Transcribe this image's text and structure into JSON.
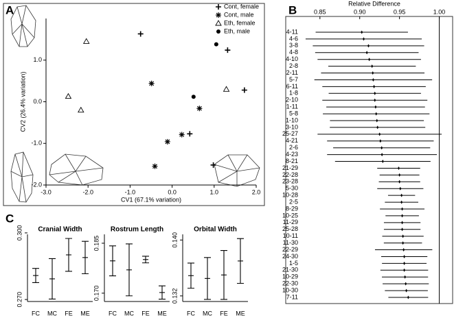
{
  "chart_data": [
    {
      "type": "scatter",
      "panel": "A",
      "x_label": "CV1 (67.1% variation)",
      "y_label": "CV2 (26.4% variation)",
      "xlim": [
        -3,
        2
      ],
      "ylim": [
        -2,
        2
      ],
      "xticks": [
        {
          "value": -3,
          "label": "-3.0"
        },
        {
          "value": -2,
          "label": "-2.0"
        },
        {
          "value": -1,
          "label": "-1.0"
        },
        {
          "value": 0,
          "label": "0.0"
        },
        {
          "value": 1,
          "label": "1.0"
        },
        {
          "value": 2,
          "label": "2.0"
        }
      ],
      "yticks": [
        {
          "value": -2,
          "label": "-2.0"
        },
        {
          "value": -1,
          "label": "-1.0"
        },
        {
          "value": 0,
          "label": "0.0"
        },
        {
          "value": 1,
          "label": "1.0"
        }
      ],
      "legend": "top-right",
      "series": [
        {
          "name": "Cont, female",
          "marker": "plus",
          "color": "#000000",
          "x": [
            -0.75,
            1.32,
            1.72,
            0.98,
            0.42
          ],
          "values": [
            1.63,
            1.24,
            0.28,
            -1.52,
            -0.77
          ]
        },
        {
          "name": "Cont, male",
          "marker": "star",
          "color": "#000000",
          "x": [
            -0.49,
            0.65,
            0.23,
            -0.11,
            -0.41
          ],
          "values": [
            0.44,
            -0.16,
            -0.79,
            -0.96,
            -1.55
          ]
        },
        {
          "name": "Eth, female",
          "marker": "triangle",
          "color": "#000000",
          "x": [
            -2.04,
            -2.47,
            -2.17,
            1.29
          ],
          "values": [
            1.45,
            0.13,
            -0.2,
            0.3
          ]
        },
        {
          "name": "Eth, male",
          "marker": "circle",
          "color": "#000000",
          "x": [
            1.05,
            0.51
          ],
          "values": [
            1.38,
            0.12
          ]
        }
      ]
    },
    {
      "type": "errorbar",
      "orientation": "horizontal",
      "panel": "B",
      "title": "Relative Difference",
      "xlim": [
        0.826,
        1.009
      ],
      "xticks": [
        0.85,
        {
          "value": 0.9,
          "label": "0.90"
        },
        0.95,
        {
          "value": 1,
          "label": "1.00"
        }
      ],
      "reference_line": 1,
      "color": "#000000",
      "categories": [
        "4-11",
        "4-6",
        "3-8",
        "4-8",
        "4-10",
        "2-8",
        "2-11",
        "5-7",
        "6-11",
        "1-8",
        "2-10",
        "1-11",
        "5-8",
        "1-10",
        "3-10",
        "25-27",
        "4-21",
        "2-6",
        "4-23",
        "8-21",
        "21-29",
        "22-28",
        "23-28",
        "5-30",
        "10-28",
        "2-5",
        "8-29",
        "10-25",
        "11-29",
        "25-28",
        "10-11",
        "11-30",
        "22-29",
        "24-30",
        "1-5",
        "21-30",
        "10-29",
        "22-30",
        "10-30",
        "7-11"
      ],
      "values": [
        0.9026,
        0.905,
        0.911,
        0.909,
        0.912,
        0.9155,
        0.9164,
        0.917,
        0.918,
        0.919,
        0.919,
        0.92,
        0.9207,
        0.9216,
        0.9224,
        0.925,
        0.926,
        0.9276,
        0.928,
        0.929,
        0.949,
        0.95,
        0.95,
        0.951,
        0.9526,
        0.9526,
        0.9534,
        0.9534,
        0.9534,
        0.9534,
        0.9543,
        0.9543,
        0.9552,
        0.956,
        0.956,
        0.956,
        0.9569,
        0.9578,
        0.9586,
        0.961
      ],
      "errors": [
        0.058,
        0.073,
        0.07,
        0.065,
        0.065,
        0.055,
        0.065,
        0.074,
        0.065,
        0.058,
        0.066,
        0.062,
        0.067,
        0.059,
        0.06,
        0.078,
        0.067,
        0.061,
        0.069,
        0.06,
        0.027,
        0.025,
        0.026,
        0.029,
        0.017,
        0.021,
        0.028,
        0.021,
        0.023,
        0.023,
        0.026,
        0.024,
        0.036,
        0.029,
        0.028,
        0.03,
        0.029,
        0.029,
        0.027,
        0.025
      ]
    },
    {
      "type": "errorbar",
      "panel": "C",
      "title": "Cranial Width",
      "categories": [
        "FC",
        "MC",
        "FE",
        "ME"
      ],
      "ylim": [
        0.2691,
        0.3012
      ],
      "yticks": [
        {
          "value": 0.27,
          "label": "0.270"
        },
        {
          "value": 0.3,
          "label": "0.300"
        }
      ],
      "values": [
        0.2808,
        0.2793,
        0.2901,
        0.2889
      ],
      "errors": [
        0.0032,
        0.0091,
        0.0074,
        0.0073
      ],
      "color": "#000000"
    },
    {
      "type": "errorbar",
      "title": "Rostrum Length",
      "categories": [
        "FC",
        "MC",
        "FE",
        "ME"
      ],
      "ylim": [
        0.1675,
        0.1889
      ],
      "yticks": [
        {
          "value": 0.17,
          "label": "0.170"
        },
        0.185
      ],
      "values": [
        0.1797,
        0.177,
        0.1801,
        0.1702
      ],
      "errors": [
        0.0045,
        0.0078,
        0.001,
        0.002
      ],
      "color": "#000000"
    },
    {
      "type": "errorbar",
      "title": "Orbital Width",
      "categories": [
        "FC",
        "MC",
        "FE",
        "ME"
      ],
      "ylim": [
        0.1312,
        0.1414
      ],
      "yticks": [
        0.132,
        {
          "value": 0.14,
          "label": "0.140"
        }
      ],
      "values": [
        0.1349,
        0.1345,
        0.135,
        0.137
      ],
      "errors": [
        0.0018,
        0.003,
        0.0035,
        0.0032
      ],
      "color": "#000000"
    }
  ]
}
